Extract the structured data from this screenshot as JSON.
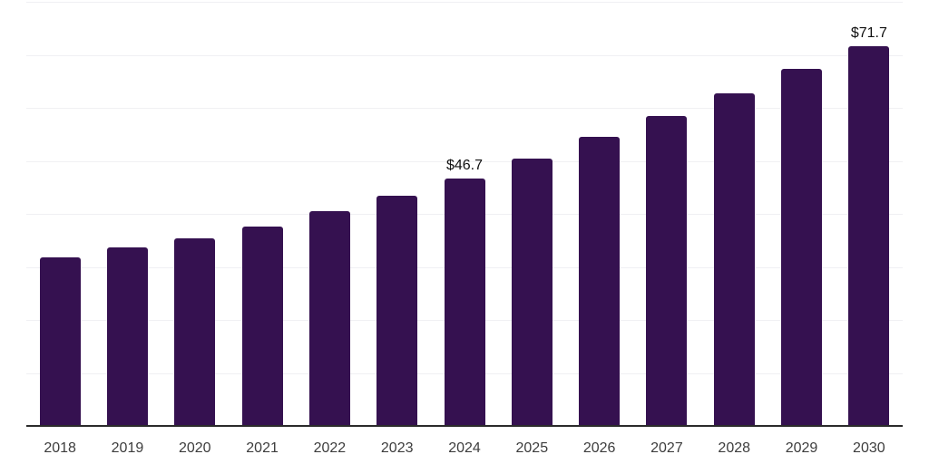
{
  "chart_data": {
    "type": "bar",
    "title": "",
    "xlabel": "",
    "ylabel": "",
    "categories": [
      "2018",
      "2019",
      "2020",
      "2021",
      "2022",
      "2023",
      "2024",
      "2025",
      "2026",
      "2027",
      "2028",
      "2029",
      "2030"
    ],
    "values": [
      31.8,
      33.6,
      35.3,
      37.6,
      40.5,
      43.5,
      46.7,
      50.5,
      54.5,
      58.5,
      62.7,
      67.3,
      71.7
    ],
    "data_labels": [
      "",
      "",
      "",
      "",
      "",
      "",
      "$46.7",
      "",
      "",
      "",
      "",
      "",
      "$71.7"
    ],
    "value_prefix": "$",
    "ylim": [
      0,
      80
    ],
    "gridline_interval": 10,
    "grid": true,
    "legend": false,
    "y_tick_labels_visible": false,
    "colors": {
      "bar": "#351150",
      "axis": "#2B2B2B",
      "gridline": "#F0F0F3",
      "data_label": "#111111",
      "tick_label": "#3D3D3D",
      "background": "#FFFFFF"
    }
  }
}
